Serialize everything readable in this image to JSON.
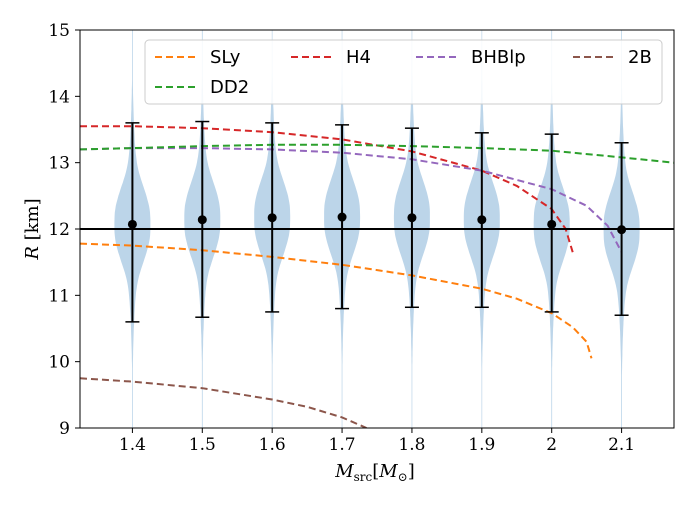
{
  "chart_data": {
    "type": "violin",
    "xlabel": "M_src[M_⊙]",
    "xlabel_parts": {
      "base": "M",
      "sub": "src",
      "bracket_open": "[",
      "inner_base": "M",
      "inner_sub": "⊙",
      "bracket_close": "]"
    },
    "ylabel": "R [km]",
    "ylabel_parts": {
      "symbol": "R",
      "unit": " [km]"
    },
    "xlim": [
      1.325,
      2.175
    ],
    "ylim": [
      9,
      15
    ],
    "xticks": [
      1.4,
      1.5,
      1.6,
      1.7,
      1.8,
      1.9,
      2.0,
      2.1
    ],
    "xtick_labels": [
      "1.4",
      "1.5",
      "1.6",
      "1.7",
      "1.8",
      "1.9",
      "2",
      "2.1"
    ],
    "yticks": [
      9,
      10,
      11,
      12,
      13,
      14,
      15
    ],
    "ytick_labels": [
      "9",
      "10",
      "11",
      "12",
      "13",
      "14",
      "15"
    ],
    "reference_line": {
      "y": 12.0,
      "color": "#000000"
    },
    "violin_color": "#b8d3e8",
    "violins": [
      {
        "mass": 1.4,
        "median": 12.07,
        "lower": 10.6,
        "upper": 13.6,
        "min": 9.0,
        "max": 15.0
      },
      {
        "mass": 1.5,
        "median": 12.14,
        "lower": 10.67,
        "upper": 13.62,
        "min": 9.0,
        "max": 15.0
      },
      {
        "mass": 1.6,
        "median": 12.17,
        "lower": 10.75,
        "upper": 13.6,
        "min": 9.0,
        "max": 15.0
      },
      {
        "mass": 1.7,
        "median": 12.18,
        "lower": 10.8,
        "upper": 13.57,
        "min": 9.0,
        "max": 15.0
      },
      {
        "mass": 1.8,
        "median": 12.17,
        "lower": 10.82,
        "upper": 13.52,
        "min": 9.0,
        "max": 15.0
      },
      {
        "mass": 1.9,
        "median": 12.14,
        "lower": 10.82,
        "upper": 13.45,
        "min": 9.0,
        "max": 15.0
      },
      {
        "mass": 2.0,
        "median": 12.07,
        "lower": 10.75,
        "upper": 13.43,
        "min": 9.0,
        "max": 15.0
      },
      {
        "mass": 2.1,
        "median": 11.99,
        "lower": 10.7,
        "upper": 13.3,
        "min": 9.0,
        "max": 15.0
      }
    ],
    "series": [
      {
        "name": "SLy",
        "color": "#ff7f0e",
        "x": [
          1.325,
          1.4,
          1.5,
          1.6,
          1.7,
          1.8,
          1.9,
          1.95,
          2.0,
          2.03,
          2.05,
          2.057
        ],
        "y": [
          11.78,
          11.75,
          11.68,
          11.58,
          11.46,
          11.3,
          11.1,
          10.95,
          10.73,
          10.52,
          10.3,
          10.05
        ]
      },
      {
        "name": "H4",
        "color": "#d62728",
        "x": [
          1.325,
          1.4,
          1.5,
          1.6,
          1.7,
          1.8,
          1.9,
          1.95,
          2.0,
          2.02,
          2.03
        ],
        "y": [
          13.55,
          13.55,
          13.52,
          13.46,
          13.35,
          13.17,
          12.88,
          12.65,
          12.3,
          12.0,
          11.65
        ]
      },
      {
        "name": "BHBlp",
        "color": "#9467bd",
        "x": [
          1.325,
          1.4,
          1.5,
          1.6,
          1.7,
          1.8,
          1.9,
          2.0,
          2.05,
          2.08,
          2.1
        ],
        "y": [
          13.2,
          13.22,
          13.22,
          13.2,
          13.15,
          13.05,
          12.88,
          12.6,
          12.35,
          12.05,
          11.65
        ]
      },
      {
        "name": "2B",
        "color": "#8c564b",
        "x": [
          1.325,
          1.4,
          1.5,
          1.6,
          1.65,
          1.7,
          1.735
        ],
        "y": [
          9.75,
          9.7,
          9.6,
          9.43,
          9.32,
          9.16,
          9.0
        ]
      },
      {
        "name": "DD2",
        "color": "#2ca02c",
        "x": [
          1.325,
          1.4,
          1.5,
          1.6,
          1.7,
          1.8,
          1.9,
          2.0,
          2.1,
          2.175
        ],
        "y": [
          13.2,
          13.22,
          13.25,
          13.27,
          13.27,
          13.25,
          13.22,
          13.18,
          13.08,
          13.0
        ]
      }
    ],
    "legend": {
      "position": "top",
      "entries": [
        {
          "label": "SLy",
          "color": "#ff7f0e"
        },
        {
          "label": "H4",
          "color": "#d62728"
        },
        {
          "label": "BHBlp",
          "color": "#9467bd"
        },
        {
          "label": "2B",
          "color": "#8c564b"
        },
        {
          "label": "DD2",
          "color": "#2ca02c"
        }
      ]
    }
  }
}
